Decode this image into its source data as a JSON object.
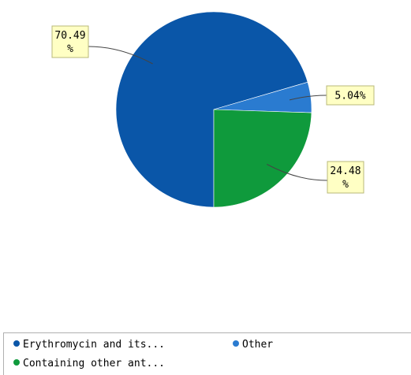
{
  "chart_data": {
    "type": "pie",
    "title": "",
    "slices": [
      {
        "name": "Erythromycin and its...",
        "value": 70.49,
        "label_lines": [
          "70.49",
          "%"
        ],
        "color": "#0a56a8"
      },
      {
        "name": "Other",
        "value": 5.04,
        "label_lines": [
          "5.04%"
        ],
        "color": "#2a7bd0"
      },
      {
        "name": "Containing other ant...",
        "value": 24.48,
        "label_lines": [
          "24.48",
          "%"
        ],
        "color": "#0f9a3c"
      }
    ],
    "legend": {
      "position": "bottom-left"
    }
  },
  "colors": {
    "callout_fill": "#ffffc4",
    "callout_stroke": "#b8b87a",
    "legend_border": "#b0b0b0",
    "leader_line": "#444444"
  }
}
